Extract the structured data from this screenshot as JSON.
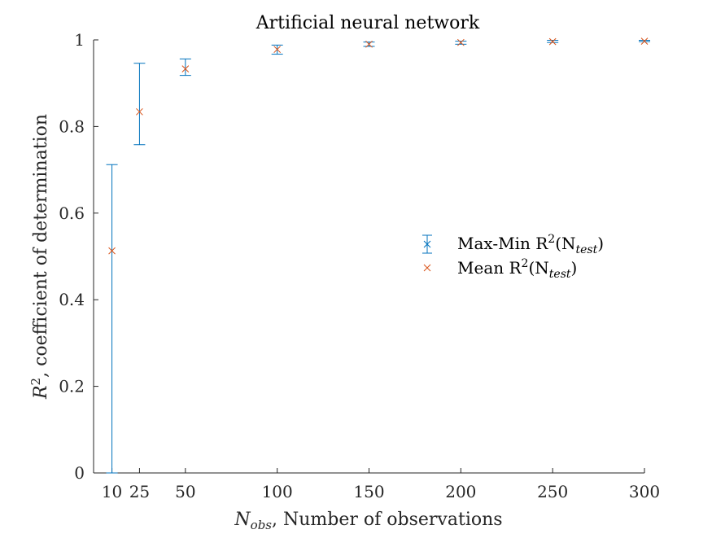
{
  "chart_data": {
    "type": "scatter",
    "title": "Artificial neural network",
    "xlabel_main": "N",
    "xlabel_sub": "obs",
    "xlabel_rest": ", Number of observations",
    "ylabel_main": "R",
    "ylabel_sup": "2",
    "ylabel_rest": ", coefficient of determination",
    "xlim": [
      0,
      300
    ],
    "ylim": [
      0,
      1
    ],
    "xticks": [
      10,
      25,
      50,
      100,
      150,
      200,
      250,
      300
    ],
    "yticks": [
      0,
      0.2,
      0.4,
      0.6,
      0.8,
      1
    ],
    "ytick_labels": [
      "0",
      "0.2",
      "0.4",
      "0.6",
      "0.8",
      "1"
    ],
    "grid": false,
    "legend_position": "right-center",
    "colors": {
      "errorbar": "#0072BD",
      "mean": "#D95319",
      "axis": "#262626"
    },
    "series": [
      {
        "name": "Max-Min R2(Ntest)",
        "legend_main": "Max-Min R",
        "legend_sup": "2",
        "legend_mid": "(N",
        "legend_sub": "test",
        "legend_end": ")",
        "kind": "errorbar",
        "points": [
          {
            "x": 10,
            "min": 0.0,
            "max": 0.712
          },
          {
            "x": 25,
            "min": 0.758,
            "max": 0.946
          },
          {
            "x": 50,
            "min": 0.918,
            "max": 0.956
          },
          {
            "x": 100,
            "min": 0.967,
            "max": 0.988
          },
          {
            "x": 150,
            "min": 0.985,
            "max": 0.995
          },
          {
            "x": 200,
            "min": 0.99,
            "max": 0.997
          },
          {
            "x": 250,
            "min": 0.994,
            "max": 0.999
          },
          {
            "x": 300,
            "min": 0.996,
            "max": 0.999
          }
        ]
      },
      {
        "name": "Mean R2(Ntest)",
        "legend_main": "Mean R",
        "legend_sup": "2",
        "legend_mid": "(N",
        "legend_sub": "test",
        "legend_end": ")",
        "kind": "marker",
        "x": [
          10,
          25,
          50,
          100,
          150,
          200,
          250,
          300
        ],
        "y": [
          0.513,
          0.834,
          0.933,
          0.978,
          0.99,
          0.994,
          0.996,
          0.997
        ]
      }
    ]
  }
}
